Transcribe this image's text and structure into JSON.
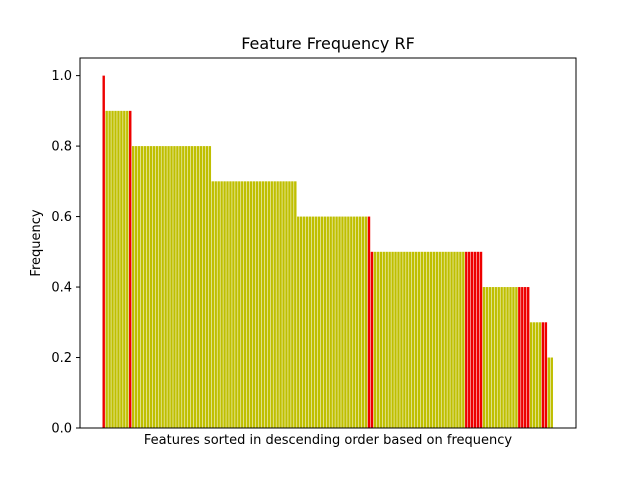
{
  "chart_data": {
    "type": "bar",
    "title": "Feature Frequency RF",
    "xlabel": "Features sorted in descending order based on frequency",
    "ylabel": "Frequency",
    "ylim": [
      0,
      1.05
    ],
    "yticks": [
      "0.0",
      "0.2",
      "0.4",
      "0.6",
      "0.8",
      "1.0"
    ],
    "ytick_values": [
      0.0,
      0.2,
      0.4,
      0.6,
      0.8,
      1.0
    ],
    "grid": false,
    "legend": "none",
    "colors": {
      "highlight": "#ee0000",
      "normal": "#bfbf00"
    },
    "groups": [
      {
        "value": 1.0,
        "count": 1,
        "red": [
          0
        ]
      },
      {
        "value": 0.9,
        "count": 9,
        "red": [
          8
        ]
      },
      {
        "value": 0.8,
        "count": 27,
        "red": []
      },
      {
        "value": 0.7,
        "count": 29,
        "red": []
      },
      {
        "value": 0.6,
        "count": 25,
        "red": [
          24
        ]
      },
      {
        "value": 0.5,
        "count": 38,
        "red": [
          0,
          32,
          33,
          34,
          35,
          36,
          37
        ]
      },
      {
        "value": 0.4,
        "count": 16,
        "red": [
          12,
          13,
          14,
          15
        ]
      },
      {
        "value": 0.3,
        "count": 6,
        "red": [
          4,
          5
        ]
      },
      {
        "value": 0.2,
        "count": 2,
        "red": []
      }
    ]
  }
}
